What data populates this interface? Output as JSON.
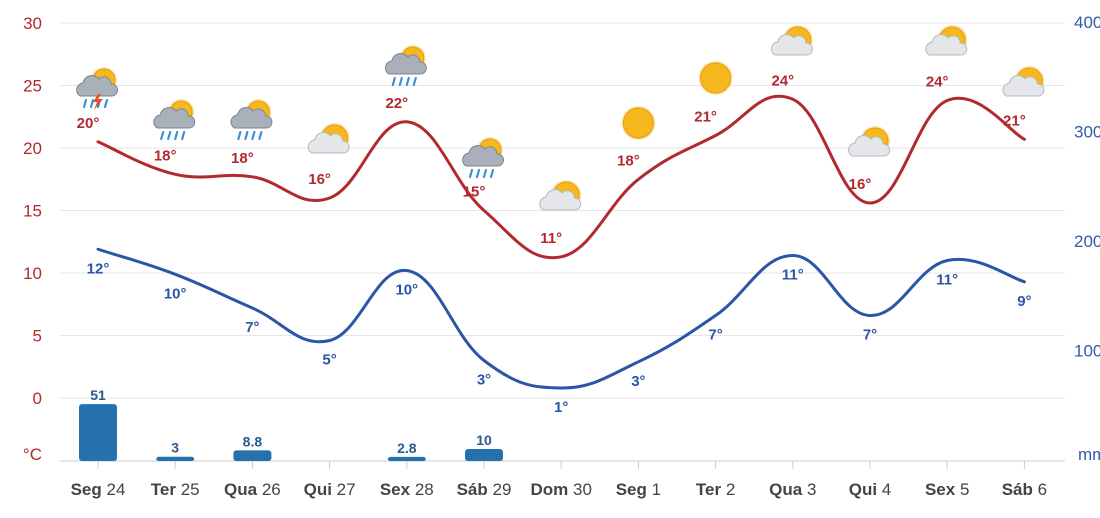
{
  "chart_data": {
    "type": "line",
    "title": "",
    "categories": [
      {
        "day": "Seg",
        "num": "24"
      },
      {
        "day": "Ter",
        "num": "25"
      },
      {
        "day": "Qua",
        "num": "26"
      },
      {
        "day": "Qui",
        "num": "27"
      },
      {
        "day": "Sex",
        "num": "28"
      },
      {
        "day": "Sáb",
        "num": "29"
      },
      {
        "day": "Dom",
        "num": "30"
      },
      {
        "day": "Seg",
        "num": "1"
      },
      {
        "day": "Ter",
        "num": "2"
      },
      {
        "day": "Qua",
        "num": "3"
      },
      {
        "day": "Qui",
        "num": "4"
      },
      {
        "day": "Sex",
        "num": "5"
      },
      {
        "day": "Sáb",
        "num": "6"
      }
    ],
    "y_left": {
      "unit_label": "°C",
      "ylim": [
        -4.5,
        30
      ],
      "ticks": [
        "0",
        "5",
        "10",
        "15",
        "20",
        "25",
        "30"
      ],
      "color": "#b02a30"
    },
    "y_right": {
      "unit_label": "mm",
      "ylim": [
        0,
        400
      ],
      "ticks": [
        "100",
        "200",
        "300",
        "400"
      ],
      "color": "#2f5ba8"
    },
    "grid": true,
    "series": [
      {
        "key": "max",
        "type": "line",
        "color": "#b02a30",
        "values": [
          20.5,
          17.9,
          17.7,
          16.0,
          22.1,
          15.0,
          11.3,
          17.5,
          21.0,
          23.9,
          15.6,
          23.8,
          20.7
        ],
        "labels": [
          "20°",
          "18°",
          "18°",
          "16°",
          "22°",
          "15°",
          "11°",
          "18°",
          "21°",
          "24°",
          "16°",
          "24°",
          "21°"
        ]
      },
      {
        "key": "min",
        "type": "line",
        "color": "#2a56a6",
        "values": [
          11.9,
          9.9,
          7.2,
          4.6,
          10.2,
          3.0,
          0.8,
          2.9,
          6.6,
          11.4,
          6.6,
          11.0,
          9.3
        ],
        "labels": [
          "12°",
          "10°",
          "7°",
          "5°",
          "10°",
          "3°",
          "1°",
          "3°",
          "7°",
          "11°",
          "7°",
          "11°",
          "9°"
        ]
      },
      {
        "key": "precip",
        "type": "bar",
        "axis": "right",
        "color": "#2471ad",
        "values": [
          51,
          3,
          8.8,
          0,
          2.8,
          10,
          0,
          0,
          0,
          0,
          0,
          0,
          0
        ],
        "labels": [
          "51",
          "3",
          "8.8",
          "",
          "2.8",
          "10",
          "",
          "",
          "",
          "",
          "",
          "",
          ""
        ]
      }
    ],
    "weather_icons": [
      "thunder-rain",
      "rain",
      "rain",
      "partly-cloudy",
      "rain",
      "rain",
      "partly-cloudy",
      "sun",
      "sun",
      "partly-cloudy",
      "partly-cloudy",
      "partly-cloudy",
      "partly-cloudy"
    ]
  }
}
